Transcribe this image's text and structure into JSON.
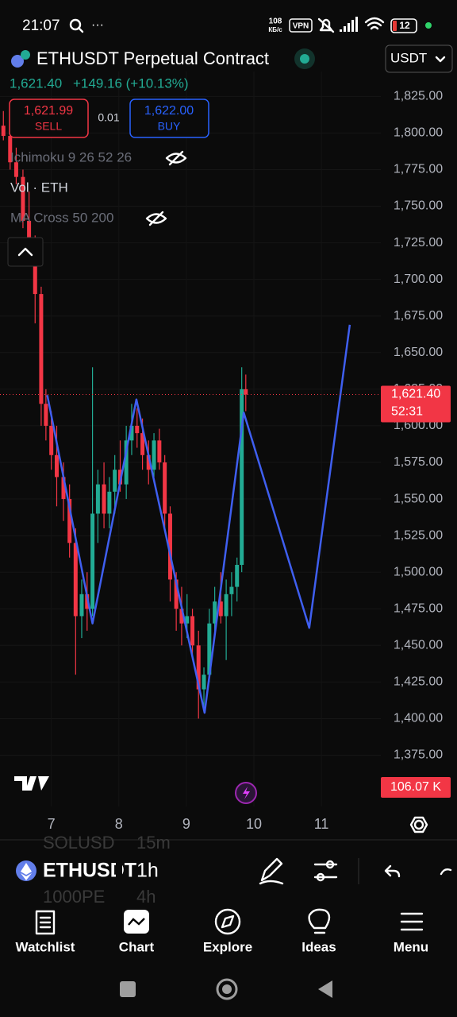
{
  "status_bar": {
    "time": "21:07",
    "net_speed": "108",
    "net_unit": "КБ/с",
    "vpn": "VPN",
    "battery": "12"
  },
  "header": {
    "symbol_title": "ETHUSDT Perpetual Contract",
    "currency": "USDT",
    "last_price": "1,621.40",
    "change": "+149.16 (+10.13%)"
  },
  "trade": {
    "sell_price": "1,621.99",
    "sell": "SELL",
    "spread": "0.01",
    "buy_price": "1,622.00",
    "buy": "BUY"
  },
  "indicators": [
    "Ichimoku 9 26 52 26",
    "Vol · ETH",
    "MA Cross 50 200"
  ],
  "chart": {
    "ylim": [
      1340,
      1842
    ],
    "xlim": [
      6.24,
      11.88
    ],
    "yticks": [
      {
        "value": 1825,
        "label": "1,825.00"
      },
      {
        "value": 1800,
        "label": "1,800.00"
      },
      {
        "value": 1775,
        "label": "1,775.00"
      },
      {
        "value": 1750,
        "label": "1,750.00"
      },
      {
        "value": 1725,
        "label": "1,725.00"
      },
      {
        "value": 1700,
        "label": "1,700.00"
      },
      {
        "value": 1675,
        "label": "1,675.00"
      },
      {
        "value": 1650,
        "label": "1,650.00"
      },
      {
        "value": 1625,
        "label": "1,625.00"
      },
      {
        "value": 1600,
        "label": "1,600.00"
      },
      {
        "value": 1575,
        "label": "1,575.00"
      },
      {
        "value": 1550,
        "label": "1,550.00"
      },
      {
        "value": 1525,
        "label": "1,525.00"
      },
      {
        "value": 1500,
        "label": "1,500.00"
      },
      {
        "value": 1475,
        "label": "1,475.00"
      },
      {
        "value": 1450,
        "label": "1,450.00"
      },
      {
        "value": 1425,
        "label": "1,425.00"
      },
      {
        "value": 1400,
        "label": "1,400.00"
      },
      {
        "value": 1375,
        "label": "1,375.00"
      }
    ],
    "xticks": [
      7,
      8,
      9,
      10,
      11
    ],
    "candles": [
      [
        6.29,
        1805,
        1815,
        1795,
        1798
      ],
      [
        6.39,
        1798,
        1800,
        1775,
        1780
      ],
      [
        6.48,
        1780,
        1790,
        1765,
        1770
      ],
      [
        6.58,
        1770,
        1775,
        1735,
        1740
      ],
      [
        6.67,
        1740,
        1760,
        1710,
        1720
      ],
      [
        6.76,
        1720,
        1730,
        1670,
        1690
      ],
      [
        6.85,
        1690,
        1695,
        1600,
        1615
      ],
      [
        6.92,
        1615,
        1625,
        1590,
        1600
      ],
      [
        7.0,
        1600,
        1610,
        1570,
        1580
      ],
      [
        7.08,
        1580,
        1600,
        1545,
        1565
      ],
      [
        7.18,
        1565,
        1575,
        1535,
        1550
      ],
      [
        7.27,
        1550,
        1560,
        1510,
        1520
      ],
      [
        7.36,
        1520,
        1530,
        1430,
        1470
      ],
      [
        7.45,
        1470,
        1495,
        1455,
        1485
      ],
      [
        7.53,
        1485,
        1500,
        1460,
        1475
      ],
      [
        7.61,
        1475,
        1640,
        1470,
        1540
      ],
      [
        7.69,
        1540,
        1570,
        1520,
        1560
      ],
      [
        7.78,
        1560,
        1575,
        1530,
        1540
      ],
      [
        7.86,
        1540,
        1565,
        1530,
        1555
      ],
      [
        7.94,
        1555,
        1580,
        1540,
        1570
      ],
      [
        8.02,
        1570,
        1590,
        1555,
        1560
      ],
      [
        8.11,
        1560,
        1600,
        1550,
        1590
      ],
      [
        8.19,
        1590,
        1615,
        1580,
        1600
      ],
      [
        8.27,
        1600,
        1612,
        1585,
        1595
      ],
      [
        8.35,
        1595,
        1605,
        1570,
        1580
      ],
      [
        8.44,
        1580,
        1590,
        1560,
        1570
      ],
      [
        8.52,
        1570,
        1595,
        1565,
        1590
      ],
      [
        8.6,
        1590,
        1598,
        1570,
        1575
      ],
      [
        8.68,
        1575,
        1580,
        1530,
        1540
      ],
      [
        8.76,
        1540,
        1545,
        1480,
        1495
      ],
      [
        8.85,
        1495,
        1500,
        1460,
        1475
      ],
      [
        8.93,
        1475,
        1490,
        1450,
        1465
      ],
      [
        9.01,
        1465,
        1485,
        1455,
        1470
      ],
      [
        9.09,
        1470,
        1475,
        1440,
        1450
      ],
      [
        9.18,
        1450,
        1460,
        1400,
        1420
      ],
      [
        9.26,
        1420,
        1435,
        1405,
        1430
      ],
      [
        9.34,
        1430,
        1475,
        1425,
        1465
      ],
      [
        9.42,
        1465,
        1490,
        1455,
        1480
      ],
      [
        9.51,
        1480,
        1500,
        1465,
        1470
      ],
      [
        9.59,
        1470,
        1495,
        1440,
        1485
      ],
      [
        9.67,
        1485,
        1500,
        1470,
        1490
      ],
      [
        9.75,
        1490,
        1510,
        1480,
        1505
      ],
      [
        9.82,
        1505,
        1640,
        1500,
        1625
      ],
      [
        9.88,
        1625,
        1635,
        1610,
        1621.4
      ]
    ],
    "up_color": "#22ab94",
    "down_color": "#f23645",
    "drawing": {
      "t": [
        6.94,
        7.61,
        8.26,
        9.27,
        9.85,
        10.82,
        11.42
      ],
      "price": [
        1621,
        1465,
        1618,
        1404,
        1609,
        1462,
        1669
      ],
      "color": "#3f5ff0"
    },
    "price_tag": {
      "value": 1621.4,
      "label": "1,621.40"
    },
    "countdown": "52:31",
    "volume_tag": "106.07 K"
  },
  "toolbar": {
    "symbol": "ETHUSDT",
    "interval": "1h",
    "picker_above": [
      "SOLUSD",
      "15m"
    ],
    "picker_below": [
      "1000PE",
      "4h"
    ]
  },
  "nav": [
    "Watchlist",
    "Chart",
    "Explore",
    "Ideas",
    "Menu"
  ]
}
